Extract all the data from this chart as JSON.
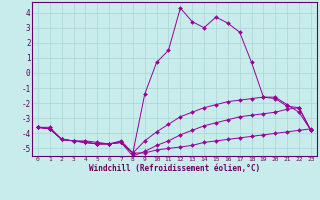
{
  "xlabel": "Windchill (Refroidissement éolien,°C)",
  "background_color": "#c8ecec",
  "grid_color": "#aad4d4",
  "line_color": "#990099",
  "xlim": [
    -0.5,
    23.5
  ],
  "ylim": [
    -5.5,
    4.7
  ],
  "xticks": [
    0,
    1,
    2,
    3,
    4,
    5,
    6,
    7,
    8,
    9,
    10,
    11,
    12,
    13,
    14,
    15,
    16,
    17,
    18,
    19,
    20,
    21,
    22,
    23
  ],
  "yticks": [
    -5,
    -4,
    -3,
    -2,
    -1,
    0,
    1,
    2,
    3,
    4
  ],
  "series": [
    {
      "x": [
        0,
        1,
        2,
        3,
        4,
        5,
        6,
        7,
        8,
        9,
        10,
        11,
        12,
        13,
        14,
        15,
        16,
        17,
        18,
        19,
        20,
        21,
        22,
        23
      ],
      "y": [
        -3.6,
        -3.6,
        -4.4,
        -4.5,
        -4.5,
        -4.6,
        -4.7,
        -4.5,
        -5.3,
        -1.4,
        0.7,
        1.5,
        4.3,
        3.4,
        3.0,
        3.7,
        3.3,
        2.7,
        0.7,
        -1.6,
        -1.7,
        -2.2,
        -2.3,
        -3.8
      ]
    },
    {
      "x": [
        0,
        1,
        2,
        3,
        4,
        5,
        6,
        7,
        8,
        9,
        10,
        11,
        12,
        13,
        14,
        15,
        16,
        17,
        18,
        19,
        20,
        21,
        22,
        23
      ],
      "y": [
        -3.6,
        -3.7,
        -4.4,
        -4.5,
        -4.6,
        -4.7,
        -4.7,
        -4.6,
        -5.3,
        -5.3,
        -5.1,
        -5.0,
        -4.9,
        -4.8,
        -4.6,
        -4.5,
        -4.4,
        -4.3,
        -4.2,
        -4.1,
        -4.0,
        -3.9,
        -3.8,
        -3.7
      ]
    },
    {
      "x": [
        0,
        1,
        2,
        3,
        4,
        5,
        6,
        7,
        8,
        9,
        10,
        11,
        12,
        13,
        14,
        15,
        16,
        17,
        18,
        19,
        20,
        21,
        22,
        23
      ],
      "y": [
        -3.6,
        -3.7,
        -4.4,
        -4.5,
        -4.6,
        -4.7,
        -4.7,
        -4.6,
        -5.5,
        -5.2,
        -4.8,
        -4.5,
        -4.1,
        -3.8,
        -3.5,
        -3.3,
        -3.1,
        -2.9,
        -2.8,
        -2.7,
        -2.6,
        -2.4,
        -2.3,
        -3.8
      ]
    },
    {
      "x": [
        0,
        1,
        2,
        3,
        4,
        5,
        6,
        7,
        8,
        9,
        10,
        11,
        12,
        13,
        14,
        15,
        16,
        17,
        18,
        19,
        20,
        21,
        22,
        23
      ],
      "y": [
        -3.6,
        -3.7,
        -4.4,
        -4.5,
        -4.6,
        -4.7,
        -4.7,
        -4.6,
        -5.3,
        -4.5,
        -3.9,
        -3.4,
        -2.9,
        -2.6,
        -2.3,
        -2.1,
        -1.9,
        -1.8,
        -1.7,
        -1.6,
        -1.6,
        -2.1,
        -2.6,
        -3.8
      ]
    }
  ]
}
